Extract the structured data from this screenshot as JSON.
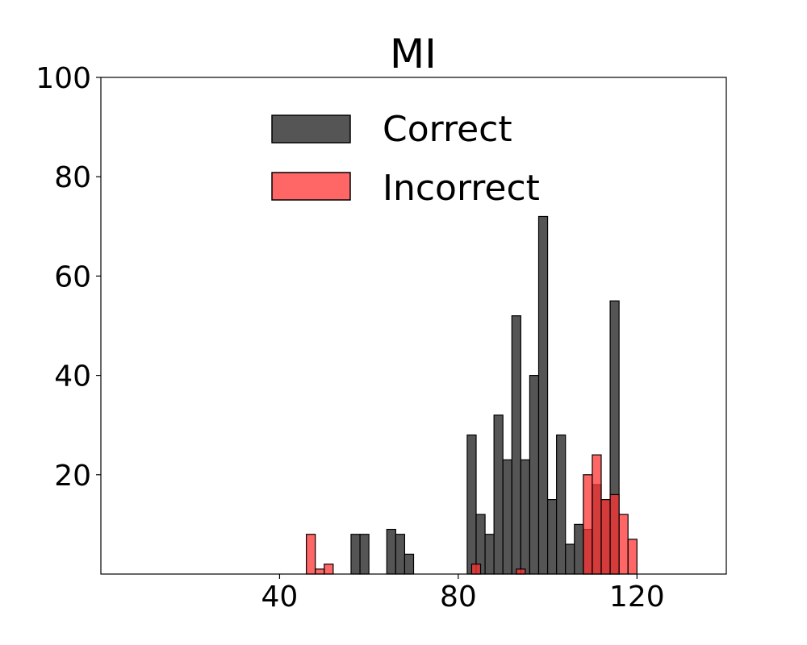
{
  "chart_data": {
    "type": "bar",
    "title": "MI",
    "xlabel": "",
    "ylabel": "",
    "xlim": [
      0,
      140
    ],
    "ylim": [
      0,
      100
    ],
    "xticks": [
      40,
      80,
      120
    ],
    "yticks": [
      20,
      40,
      60,
      80,
      100
    ],
    "legend_position": "top-center",
    "bin_width": 2,
    "series": [
      {
        "name": "Correct",
        "color": "#555555",
        "bins": [
          {
            "x": 57,
            "y": 8
          },
          {
            "x": 59,
            "y": 8
          },
          {
            "x": 65,
            "y": 9
          },
          {
            "x": 67,
            "y": 8
          },
          {
            "x": 69,
            "y": 4
          },
          {
            "x": 83,
            "y": 28
          },
          {
            "x": 85,
            "y": 12
          },
          {
            "x": 87,
            "y": 8
          },
          {
            "x": 89,
            "y": 32
          },
          {
            "x": 91,
            "y": 23
          },
          {
            "x": 93,
            "y": 52
          },
          {
            "x": 95,
            "y": 23
          },
          {
            "x": 97,
            "y": 40
          },
          {
            "x": 99,
            "y": 72
          },
          {
            "x": 101,
            "y": 15
          },
          {
            "x": 103,
            "y": 28
          },
          {
            "x": 105,
            "y": 6
          },
          {
            "x": 107,
            "y": 10
          },
          {
            "x": 109,
            "y": 9
          },
          {
            "x": 111,
            "y": 18
          },
          {
            "x": 113,
            "y": 15
          },
          {
            "x": 115,
            "y": 55
          }
        ]
      },
      {
        "name": "Incorrect",
        "color": "#ff3333",
        "bins": [
          {
            "x": 47,
            "y": 8
          },
          {
            "x": 49,
            "y": 1
          },
          {
            "x": 51,
            "y": 2
          },
          {
            "x": 84,
            "y": 2
          },
          {
            "x": 94,
            "y": 1
          },
          {
            "x": 109,
            "y": 20
          },
          {
            "x": 111,
            "y": 24
          },
          {
            "x": 113,
            "y": 15
          },
          {
            "x": 115,
            "y": 16
          },
          {
            "x": 117,
            "y": 12
          },
          {
            "x": 119,
            "y": 7
          }
        ]
      }
    ]
  }
}
